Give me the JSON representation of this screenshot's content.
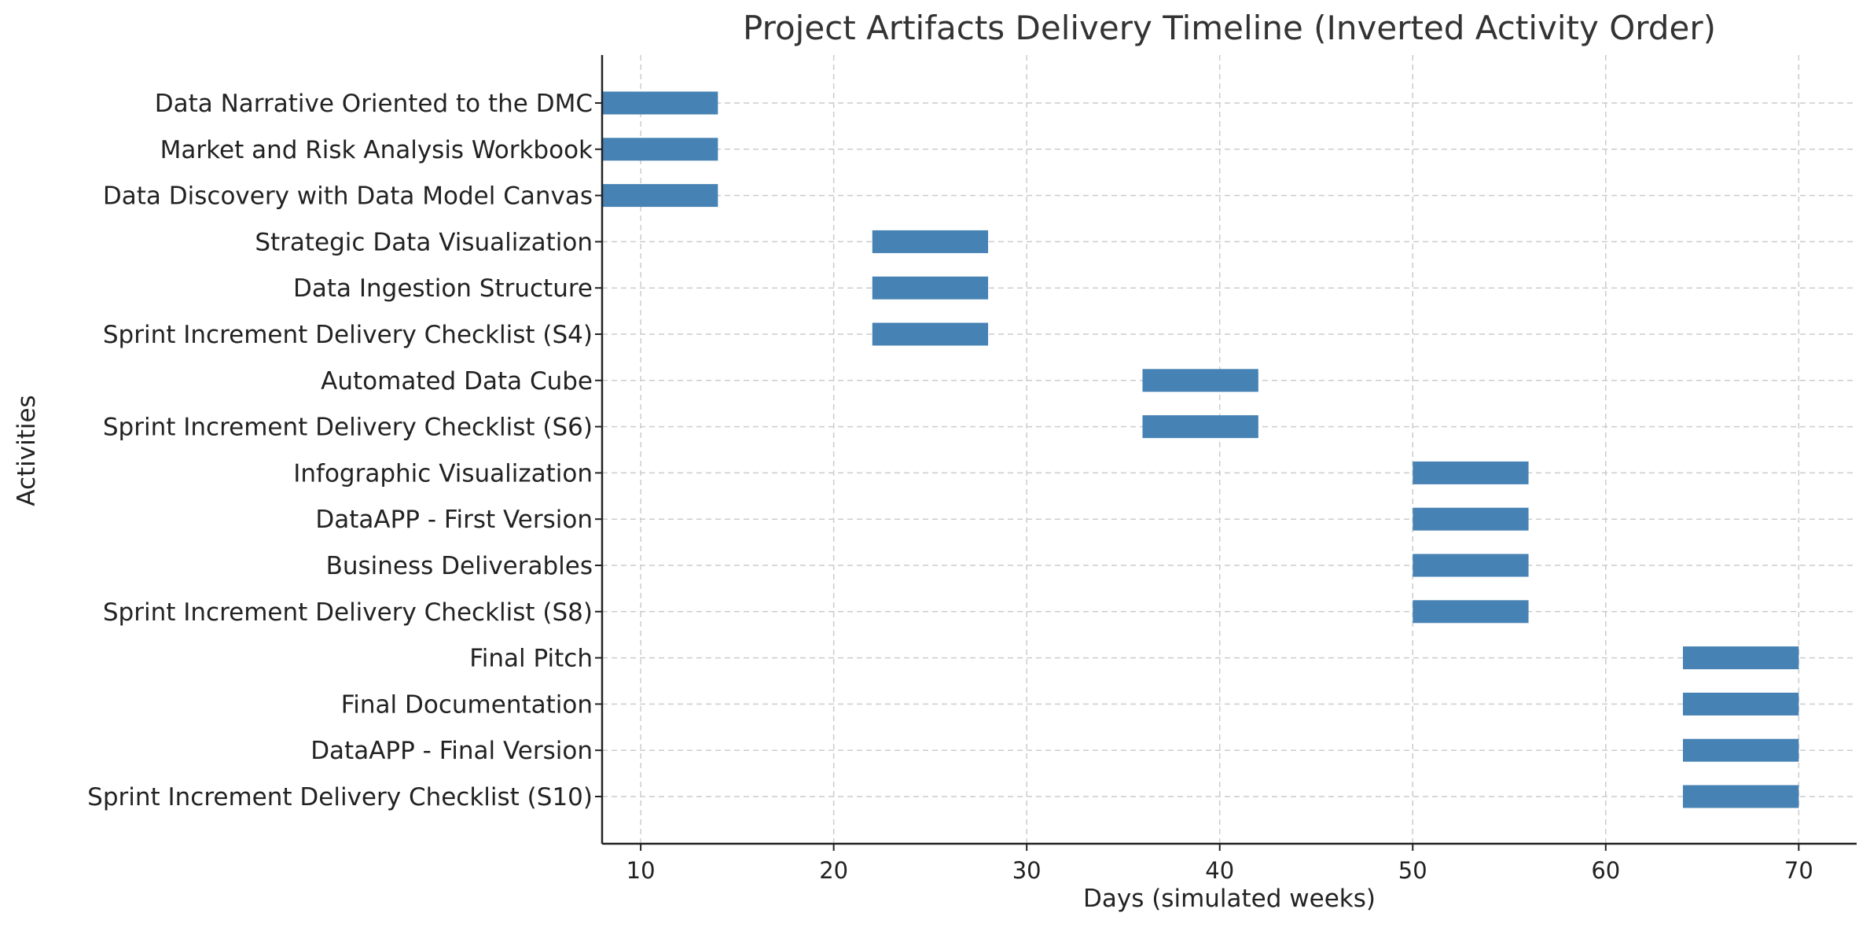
{
  "chart_data": {
    "type": "bar",
    "orientation": "horizontal",
    "title": "Project Artifacts Delivery Timeline (Inverted Activity Order)",
    "xlabel": "Days (simulated weeks)",
    "ylabel": "Activities",
    "xlim": [
      8,
      73
    ],
    "xticks": [
      10,
      20,
      30,
      40,
      50,
      60,
      70
    ],
    "grid": true,
    "bar_color": "#4682b4",
    "activities": [
      {
        "label": "Data Narrative Oriented to the DMC",
        "start": 8,
        "end": 14
      },
      {
        "label": "Market and Risk Analysis Workbook",
        "start": 8,
        "end": 14
      },
      {
        "label": "Data Discovery with Data Model Canvas",
        "start": 8,
        "end": 14
      },
      {
        "label": "Strategic Data Visualization",
        "start": 22,
        "end": 28
      },
      {
        "label": "Data Ingestion Structure",
        "start": 22,
        "end": 28
      },
      {
        "label": "Sprint Increment Delivery Checklist (S4)",
        "start": 22,
        "end": 28
      },
      {
        "label": "Automated Data Cube",
        "start": 36,
        "end": 42
      },
      {
        "label": "Sprint Increment Delivery Checklist (S6)",
        "start": 36,
        "end": 42
      },
      {
        "label": "Infographic Visualization",
        "start": 50,
        "end": 56
      },
      {
        "label": "DataAPP - First Version",
        "start": 50,
        "end": 56
      },
      {
        "label": "Business Deliverables",
        "start": 50,
        "end": 56
      },
      {
        "label": "Sprint Increment Delivery Checklist (S8)",
        "start": 50,
        "end": 56
      },
      {
        "label": "Final Pitch",
        "start": 64,
        "end": 70
      },
      {
        "label": "Final Documentation",
        "start": 64,
        "end": 70
      },
      {
        "label": "DataAPP - Final Version",
        "start": 64,
        "end": 70
      },
      {
        "label": "Sprint Increment Delivery Checklist (S10)",
        "start": 64,
        "end": 70
      }
    ]
  }
}
